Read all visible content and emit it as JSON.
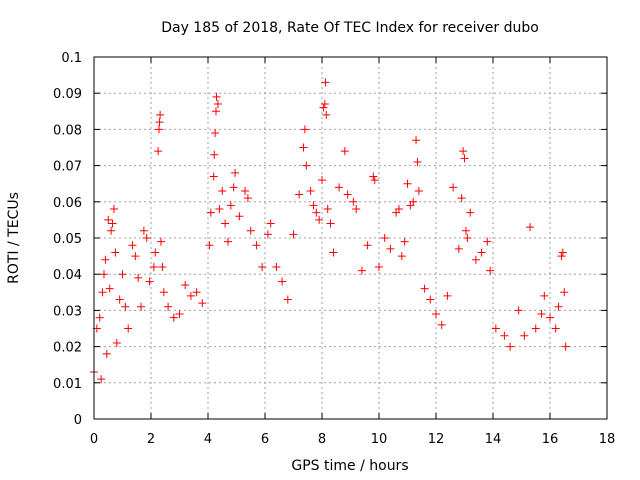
{
  "chart_data": {
    "type": "scatter",
    "title": "Day 185 of 2018, Rate Of TEC Index for receiver dubo",
    "xlabel": "GPS time / hours",
    "ylabel": "ROTI / TECUs",
    "xlim": [
      0,
      18
    ],
    "ylim": [
      0,
      0.1
    ],
    "xticks": [
      0,
      2,
      4,
      6,
      8,
      10,
      12,
      14,
      16,
      18
    ],
    "xtick_labels": [
      "0",
      "2",
      "4",
      "6",
      "8",
      "10",
      "12",
      "14",
      "16",
      "18"
    ],
    "yticks": [
      0,
      0.01,
      0.02,
      0.03,
      0.04,
      0.05,
      0.06,
      0.07,
      0.08,
      0.09,
      0.1
    ],
    "ytick_labels": [
      "0",
      "0.01",
      "0.02",
      "0.03",
      "0.04",
      "0.05",
      "0.06",
      "0.07",
      "0.08",
      "0.09",
      "0.1"
    ],
    "grid": true,
    "marker": "+",
    "color": "#ff0000",
    "series": [
      {
        "name": "ROTI",
        "points": [
          [
            0.0,
            0.013
          ],
          [
            0.1,
            0.025
          ],
          [
            0.2,
            0.028
          ],
          [
            0.25,
            0.011
          ],
          [
            0.3,
            0.035
          ],
          [
            0.35,
            0.04
          ],
          [
            0.4,
            0.044
          ],
          [
            0.45,
            0.018
          ],
          [
            0.5,
            0.055
          ],
          [
            0.55,
            0.036
          ],
          [
            0.6,
            0.052
          ],
          [
            0.65,
            0.054
          ],
          [
            0.7,
            0.058
          ],
          [
            0.75,
            0.046
          ],
          [
            0.8,
            0.021
          ],
          [
            0.9,
            0.033
          ],
          [
            1.0,
            0.04
          ],
          [
            1.1,
            0.031
          ],
          [
            1.2,
            0.025
          ],
          [
            1.35,
            0.048
          ],
          [
            1.45,
            0.045
          ],
          [
            1.55,
            0.039
          ],
          [
            1.65,
            0.031
          ],
          [
            1.75,
            0.052
          ],
          [
            1.85,
            0.05
          ],
          [
            1.95,
            0.038
          ],
          [
            2.1,
            0.042
          ],
          [
            2.15,
            0.046
          ],
          [
            2.25,
            0.074
          ],
          [
            2.28,
            0.08
          ],
          [
            2.3,
            0.082
          ],
          [
            2.32,
            0.084
          ],
          [
            2.35,
            0.049
          ],
          [
            2.4,
            0.042
          ],
          [
            2.45,
            0.035
          ],
          [
            2.6,
            0.031
          ],
          [
            2.8,
            0.028
          ],
          [
            3.0,
            0.029
          ],
          [
            3.2,
            0.037
          ],
          [
            3.4,
            0.034
          ],
          [
            3.6,
            0.035
          ],
          [
            3.8,
            0.032
          ],
          [
            4.05,
            0.048
          ],
          [
            4.1,
            0.057
          ],
          [
            4.2,
            0.067
          ],
          [
            4.22,
            0.073
          ],
          [
            4.25,
            0.079
          ],
          [
            4.28,
            0.085
          ],
          [
            4.3,
            0.089
          ],
          [
            4.35,
            0.087
          ],
          [
            4.4,
            0.058
          ],
          [
            4.5,
            0.063
          ],
          [
            4.6,
            0.054
          ],
          [
            4.7,
            0.049
          ],
          [
            4.8,
            0.059
          ],
          [
            4.9,
            0.064
          ],
          [
            4.95,
            0.068
          ],
          [
            5.1,
            0.056
          ],
          [
            5.3,
            0.063
          ],
          [
            5.4,
            0.061
          ],
          [
            5.5,
            0.052
          ],
          [
            5.7,
            0.048
          ],
          [
            5.9,
            0.042
          ],
          [
            6.1,
            0.051
          ],
          [
            6.2,
            0.054
          ],
          [
            6.4,
            0.042
          ],
          [
            6.6,
            0.038
          ],
          [
            6.8,
            0.033
          ],
          [
            7.0,
            0.051
          ],
          [
            7.2,
            0.062
          ],
          [
            7.35,
            0.075
          ],
          [
            7.4,
            0.08
          ],
          [
            7.45,
            0.07
          ],
          [
            7.6,
            0.063
          ],
          [
            7.7,
            0.059
          ],
          [
            7.8,
            0.057
          ],
          [
            7.9,
            0.055
          ],
          [
            8.0,
            0.066
          ],
          [
            8.05,
            0.086
          ],
          [
            8.1,
            0.087
          ],
          [
            8.12,
            0.093
          ],
          [
            8.15,
            0.084
          ],
          [
            8.2,
            0.058
          ],
          [
            8.3,
            0.054
          ],
          [
            8.4,
            0.046
          ],
          [
            8.6,
            0.064
          ],
          [
            8.8,
            0.074
          ],
          [
            8.9,
            0.062
          ],
          [
            9.1,
            0.06
          ],
          [
            9.2,
            0.058
          ],
          [
            9.4,
            0.041
          ],
          [
            9.6,
            0.048
          ],
          [
            9.8,
            0.067
          ],
          [
            9.85,
            0.066
          ],
          [
            10.0,
            0.042
          ],
          [
            10.2,
            0.05
          ],
          [
            10.4,
            0.047
          ],
          [
            10.6,
            0.057
          ],
          [
            10.7,
            0.058
          ],
          [
            10.8,
            0.045
          ],
          [
            10.9,
            0.049
          ],
          [
            11.0,
            0.065
          ],
          [
            11.1,
            0.059
          ],
          [
            11.2,
            0.06
          ],
          [
            11.3,
            0.077
          ],
          [
            11.35,
            0.071
          ],
          [
            11.4,
            0.063
          ],
          [
            11.6,
            0.036
          ],
          [
            11.8,
            0.033
          ],
          [
            12.0,
            0.029
          ],
          [
            12.2,
            0.026
          ],
          [
            12.4,
            0.034
          ],
          [
            12.6,
            0.064
          ],
          [
            12.8,
            0.047
          ],
          [
            12.9,
            0.061
          ],
          [
            12.95,
            0.074
          ],
          [
            13.0,
            0.072
          ],
          [
            13.05,
            0.052
          ],
          [
            13.1,
            0.05
          ],
          [
            13.2,
            0.057
          ],
          [
            13.4,
            0.044
          ],
          [
            13.6,
            0.046
          ],
          [
            13.8,
            0.049
          ],
          [
            13.9,
            0.041
          ],
          [
            14.1,
            0.025
          ],
          [
            14.4,
            0.023
          ],
          [
            14.6,
            0.02
          ],
          [
            14.9,
            0.03
          ],
          [
            15.1,
            0.023
          ],
          [
            15.3,
            0.053
          ],
          [
            15.5,
            0.025
          ],
          [
            15.7,
            0.029
          ],
          [
            15.8,
            0.034
          ],
          [
            16.0,
            0.028
          ],
          [
            16.2,
            0.025
          ],
          [
            16.3,
            0.031
          ],
          [
            16.4,
            0.045
          ],
          [
            16.45,
            0.046
          ],
          [
            16.5,
            0.035
          ],
          [
            16.55,
            0.02
          ]
        ]
      }
    ]
  }
}
